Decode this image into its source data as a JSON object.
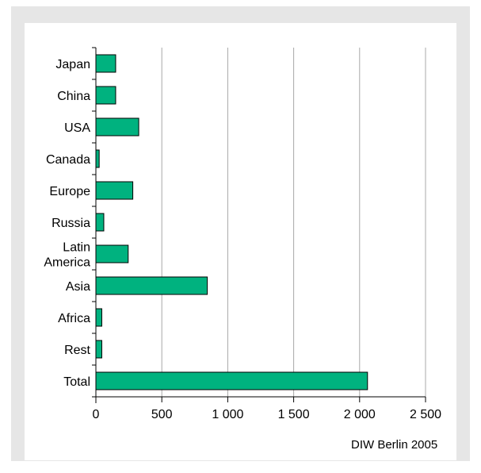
{
  "chart_data": {
    "type": "bar",
    "orientation": "horizontal",
    "categories": [
      "Japan",
      "China",
      "USA",
      "Canada",
      "Europe",
      "Russia",
      "Latin America",
      "Asia",
      "Africa",
      "Rest",
      "Total"
    ],
    "category_lines": [
      [
        "Japan"
      ],
      [
        "China"
      ],
      [
        "USA"
      ],
      [
        "Canada"
      ],
      [
        "Europe"
      ],
      [
        "Russia"
      ],
      [
        "Latin",
        "America"
      ],
      [
        "Asia"
      ],
      [
        "Africa"
      ],
      [
        "Rest"
      ],
      [
        "Total"
      ]
    ],
    "values": [
      150,
      150,
      325,
      25,
      280,
      60,
      245,
      845,
      45,
      45,
      2060
    ],
    "xlim": [
      0,
      2500
    ],
    "ticks": [
      0,
      500,
      1000,
      1500,
      2000,
      2500
    ],
    "tick_labels": [
      "0",
      "500",
      "1 000",
      "1 500",
      "2 000",
      "2 500"
    ],
    "grid": "vertical",
    "title": "",
    "xlabel": "",
    "ylabel": "",
    "bar_color": "#00b27f",
    "credit": "DIW Berlin 2005"
  }
}
